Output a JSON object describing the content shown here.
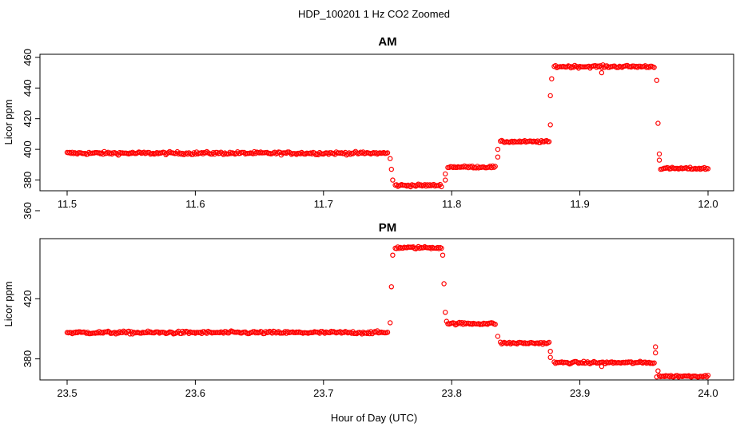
{
  "figure": {
    "title": "HDP_100201  1 Hz CO2 Zoomed",
    "xlabel": "Hour of Day (UTC)"
  },
  "colors": {
    "points": "#ff0000",
    "axes": "#000000",
    "background": "#ffffff"
  },
  "chart_data": [
    {
      "type": "scatter",
      "title": "AM",
      "xlabel": "Hour of Day (UTC)",
      "ylabel": "Licor ppm",
      "xlim": [
        11.5,
        12.0
      ],
      "ylim": [
        373,
        462
      ],
      "xticks": [
        11.5,
        11.6,
        11.7,
        11.8,
        11.9,
        12.0
      ],
      "xtick_labels": [
        "11.5",
        "11.6",
        "11.7",
        "11.8",
        "11.9",
        "12.0"
      ],
      "yticks": [
        360,
        380,
        400,
        420,
        440,
        460
      ],
      "ytick_labels": [
        "360",
        "380",
        "400",
        "420",
        "440",
        "460"
      ],
      "grid": false,
      "marker": "open-circle",
      "series": [
        {
          "segments": [
            {
              "x0": 11.5,
              "x1": 11.75,
              "y": 397.5,
              "noise": 1.2
            },
            {
              "x0": 11.756,
              "x1": 11.792,
              "y": 376.5,
              "noise": 1.0
            },
            {
              "x0": 11.797,
              "x1": 11.834,
              "y": 388.5,
              "noise": 0.9
            },
            {
              "x0": 11.838,
              "x1": 11.876,
              "y": 405.0,
              "noise": 0.9
            },
            {
              "x0": 11.88,
              "x1": 11.958,
              "y": 454.0,
              "noise": 1.1
            },
            {
              "x0": 11.963,
              "x1": 12.0,
              "y": 387.5,
              "noise": 0.9
            }
          ],
          "transitions": [
            {
              "x": 11.752,
              "y": 394
            },
            {
              "x": 11.753,
              "y": 387
            },
            {
              "x": 11.754,
              "y": 380
            },
            {
              "x": 11.795,
              "y": 380
            },
            {
              "x": 11.795,
              "y": 384
            },
            {
              "x": 11.836,
              "y": 395
            },
            {
              "x": 11.836,
              "y": 400
            },
            {
              "x": 11.877,
              "y": 416
            },
            {
              "x": 11.877,
              "y": 435
            },
            {
              "x": 11.878,
              "y": 446
            },
            {
              "x": 11.917,
              "y": 450
            },
            {
              "x": 11.96,
              "y": 445
            },
            {
              "x": 11.961,
              "y": 417
            },
            {
              "x": 11.962,
              "y": 397
            },
            {
              "x": 11.962,
              "y": 393
            }
          ]
        }
      ]
    },
    {
      "type": "scatter",
      "title": "PM",
      "xlabel": "Hour of Day (UTC)",
      "ylabel": "Licor ppm",
      "xlim": [
        23.5,
        24.0
      ],
      "ylim": [
        366,
        460
      ],
      "xticks": [
        23.5,
        23.6,
        23.7,
        23.8,
        23.9,
        24.0
      ],
      "xtick_labels": [
        "23.5",
        "23.6",
        "23.7",
        "23.8",
        "23.9",
        "24.0"
      ],
      "yticks": [
        380,
        420
      ],
      "ytick_labels": [
        "380",
        "420"
      ],
      "grid": false,
      "marker": "open-circle",
      "series": [
        {
          "segments": [
            {
              "x0": 23.5,
              "x1": 23.75,
              "y": 397.5,
              "noise": 1.2
            },
            {
              "x0": 23.756,
              "x1": 23.792,
              "y": 454.0,
              "noise": 1.0
            },
            {
              "x0": 23.797,
              "x1": 23.834,
              "y": 403.5,
              "noise": 1.0
            },
            {
              "x0": 23.838,
              "x1": 23.876,
              "y": 390.5,
              "noise": 1.0
            },
            {
              "x0": 23.88,
              "x1": 23.958,
              "y": 377.5,
              "noise": 1.0
            },
            {
              "x0": 23.962,
              "x1": 24.0,
              "y": 368.5,
              "noise": 0.8
            }
          ],
          "transitions": [
            {
              "x": 23.752,
              "y": 404
            },
            {
              "x": 23.753,
              "y": 428
            },
            {
              "x": 23.754,
              "y": 449
            },
            {
              "x": 23.793,
              "y": 449
            },
            {
              "x": 23.794,
              "y": 430
            },
            {
              "x": 23.795,
              "y": 411
            },
            {
              "x": 23.796,
              "y": 405
            },
            {
              "x": 23.836,
              "y": 395
            },
            {
              "x": 23.877,
              "y": 385
            },
            {
              "x": 23.877,
              "y": 381
            },
            {
              "x": 23.917,
              "y": 375
            },
            {
              "x": 23.959,
              "y": 384
            },
            {
              "x": 23.959,
              "y": 388
            },
            {
              "x": 23.96,
              "y": 368
            },
            {
              "x": 23.961,
              "y": 372
            }
          ]
        }
      ]
    }
  ]
}
